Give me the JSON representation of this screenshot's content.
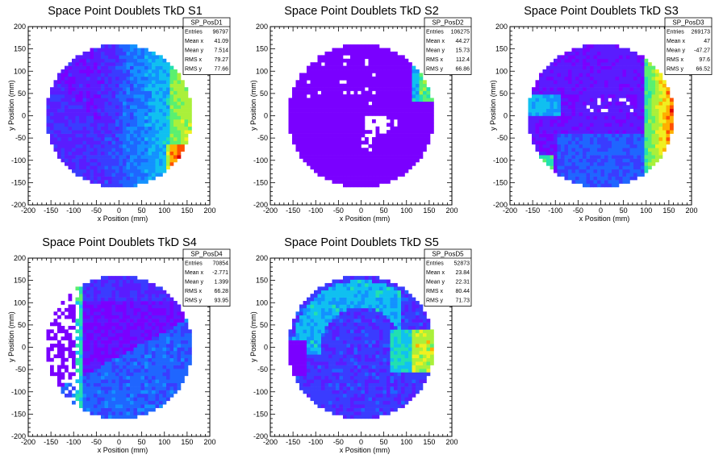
{
  "chart_data": [
    {
      "type": "heatmap",
      "title": "Space Point Doublets TkD S1",
      "xlabel": "x Position (mm)",
      "ylabel": "y Position (mm)",
      "xlim": [
        -200,
        200
      ],
      "ylim": [
        -200,
        200
      ],
      "xticks": [
        "-200",
        "-150",
        "-100",
        "-50",
        "0",
        "50",
        "100",
        "150",
        "200"
      ],
      "yticks": [
        "-200",
        "-150",
        "-100",
        "-50",
        "0",
        "50",
        "100",
        "150",
        "200"
      ],
      "pattern": "gradient_right_hotspot",
      "stats": {
        "name": "SP_PosD1",
        "rows": [
          {
            "label": "Entries",
            "value": "96797"
          },
          {
            "label": "Mean x",
            "value": "41.09"
          },
          {
            "label": "Mean y",
            "value": "7.514"
          },
          {
            "label": "RMS x",
            "value": "79.27"
          },
          {
            "label": "RMS y",
            "value": "77.66"
          }
        ]
      }
    },
    {
      "type": "heatmap",
      "title": "Space Point Doublets TkD S2",
      "xlabel": "x Position (mm)",
      "ylabel": "y Position (mm)",
      "xlim": [
        -200,
        200
      ],
      "ylim": [
        -200,
        200
      ],
      "xticks": [
        "-200",
        "-150",
        "-100",
        "-50",
        "0",
        "50",
        "100",
        "150",
        "200"
      ],
      "yticks": [
        "-200",
        "-150",
        "-100",
        "-50",
        "0",
        "50",
        "100",
        "150",
        "200"
      ],
      "pattern": "flat_with_holes",
      "stats": {
        "name": "SP_PosD2",
        "rows": [
          {
            "label": "Entries",
            "value": "106275"
          },
          {
            "label": "Mean x",
            "value": "44.27"
          },
          {
            "label": "Mean y",
            "value": "15.73"
          },
          {
            "label": "RMS x",
            "value": "112.4"
          },
          {
            "label": "RMS y",
            "value": "66.86"
          }
        ]
      }
    },
    {
      "type": "heatmap",
      "title": "Space Point Doublets TkD S3",
      "xlabel": "x Position (mm)",
      "ylabel": "y Position (mm)",
      "xlim": [
        -200,
        200
      ],
      "ylim": [
        -200,
        200
      ],
      "xticks": [
        "-200",
        "-150",
        "-100",
        "-50",
        "0",
        "50",
        "100",
        "150",
        "200"
      ],
      "yticks": [
        "-200",
        "-150",
        "-100",
        "-50",
        "0",
        "50",
        "100",
        "150",
        "200"
      ],
      "pattern": "right_band_hot",
      "stats": {
        "name": "SP_PosD3",
        "rows": [
          {
            "label": "Entries",
            "value": "269173"
          },
          {
            "label": "Mean x",
            "value": "47"
          },
          {
            "label": "Mean y",
            "value": "-47.27"
          },
          {
            "label": "RMS x",
            "value": "97.6"
          },
          {
            "label": "RMS y",
            "value": "66.52"
          }
        ]
      }
    },
    {
      "type": "heatmap",
      "title": "Space Point Doublets TkD S4",
      "xlabel": "x Position (mm)",
      "ylabel": "y Position (mm)",
      "xlim": [
        -200,
        200
      ],
      "ylim": [
        -200,
        200
      ],
      "xticks": [
        "-200",
        "-150",
        "-100",
        "-50",
        "0",
        "50",
        "100",
        "150",
        "200"
      ],
      "yticks": [
        "-200",
        "-150",
        "-100",
        "-50",
        "0",
        "50",
        "100",
        "150",
        "200"
      ],
      "pattern": "left_holes_diagonal",
      "stats": {
        "name": "SP_PosD4",
        "rows": [
          {
            "label": "Entries",
            "value": "70854"
          },
          {
            "label": "Mean x",
            "value": "-2.771"
          },
          {
            "label": "Mean y",
            "value": "1.399"
          },
          {
            "label": "RMS x",
            "value": "66.28"
          },
          {
            "label": "RMS y",
            "value": "93.95"
          }
        ]
      }
    },
    {
      "type": "heatmap",
      "title": "Space Point Doublets TkD S5",
      "xlabel": "x Position (mm)",
      "ylabel": "y Position (mm)",
      "xlim": [
        -200,
        200
      ],
      "ylim": [
        -200,
        200
      ],
      "xticks": [
        "-200",
        "-150",
        "-100",
        "-50",
        "0",
        "50",
        "100",
        "150",
        "200"
      ],
      "yticks": [
        "-200",
        "-150",
        "-100",
        "-50",
        "0",
        "50",
        "100",
        "150",
        "200"
      ],
      "pattern": "top_arc_right_hot",
      "stats": {
        "name": "SP_PosD5",
        "rows": [
          {
            "label": "Entries",
            "value": "52873"
          },
          {
            "label": "Mean x",
            "value": "23.84"
          },
          {
            "label": "Mean y",
            "value": "22.31"
          },
          {
            "label": "RMS x",
            "value": "80.44"
          },
          {
            "label": "RMS y",
            "value": "71.73"
          }
        ]
      }
    }
  ]
}
